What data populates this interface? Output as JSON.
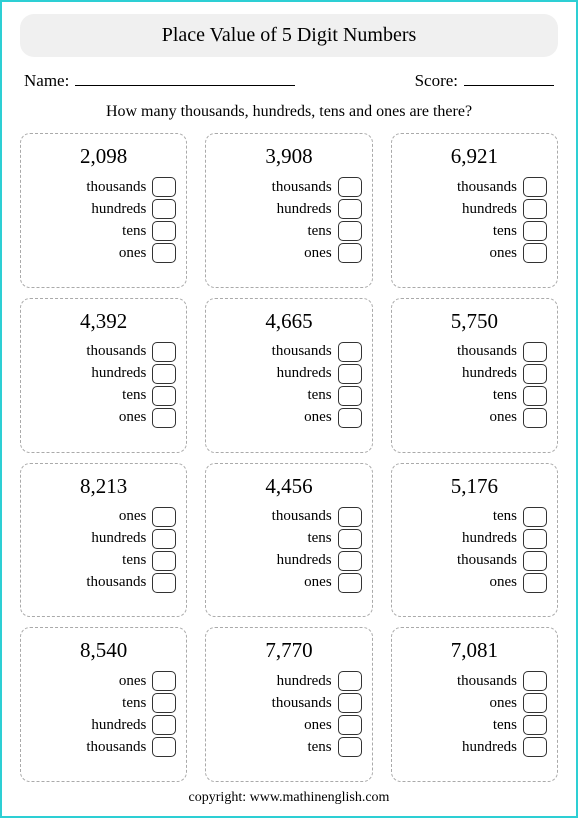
{
  "title": "Place Value of 5 Digit Numbers",
  "name_label": "Name:",
  "score_label": "Score:",
  "instruction": "How many thousands, hundreds, tens and ones are there?",
  "footer": "copyright:    www.mathinenglish.com",
  "problems": [
    {
      "number": "2,098",
      "labels": [
        "thousands",
        "hundreds",
        "tens",
        "ones"
      ]
    },
    {
      "number": "3,908",
      "labels": [
        "thousands",
        "hundreds",
        "tens",
        "ones"
      ]
    },
    {
      "number": "6,921",
      "labels": [
        "thousands",
        "hundreds",
        "tens",
        "ones"
      ]
    },
    {
      "number": "4,392",
      "labels": [
        "thousands",
        "hundreds",
        "tens",
        "ones"
      ]
    },
    {
      "number": "4,665",
      "labels": [
        "thousands",
        "hundreds",
        "tens",
        "ones"
      ]
    },
    {
      "number": "5,750",
      "labels": [
        "thousands",
        "hundreds",
        "tens",
        "ones"
      ]
    },
    {
      "number": "8,213",
      "labels": [
        "ones",
        "hundreds",
        "tens",
        "thousands"
      ]
    },
    {
      "number": "4,456",
      "labels": [
        "thousands",
        "tens",
        "hundreds",
        "ones"
      ]
    },
    {
      "number": "5,176",
      "labels": [
        "tens",
        "hundreds",
        "thousands",
        "ones"
      ]
    },
    {
      "number": "8,540",
      "labels": [
        "ones",
        "tens",
        "hundreds",
        "thousands"
      ]
    },
    {
      "number": "7,770",
      "labels": [
        "hundreds",
        "thousands",
        "ones",
        "tens"
      ]
    },
    {
      "number": "7,081",
      "labels": [
        "thousands",
        "ones",
        "tens",
        "hundreds"
      ]
    }
  ]
}
